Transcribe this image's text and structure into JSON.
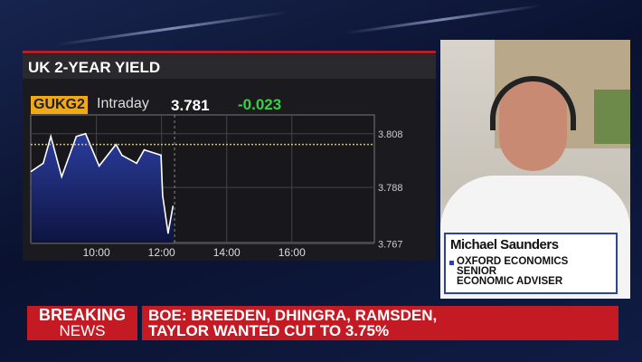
{
  "panel": {
    "title": "UK 2-YEAR YIELD",
    "ticker": "GUKG2",
    "mode": "Intraday",
    "last": "3.781",
    "change": "-0.023",
    "accent": "#f0a818",
    "change_color": "#37d23f"
  },
  "chart_data": {
    "type": "area",
    "title": "UK 2-YEAR YIELD",
    "x_ticks": [
      "10:00",
      "12:00",
      "14:00",
      "16:00"
    ],
    "y_ticks": [
      "3.808",
      "3.788",
      "3.767"
    ],
    "xlim": [
      "07:59",
      "18:32"
    ],
    "ylim": [
      3.7675,
      3.815
    ],
    "reference_line": {
      "value": 3.804,
      "style": "dotted",
      "color": "#e8c13a"
    },
    "current_time_marker": "12:24",
    "series": [
      {
        "x": [
          "08:00",
          "08:22",
          "08:36",
          "08:56",
          "09:23",
          "09:40",
          "10:05",
          "10:36",
          "10:47",
          "11:14",
          "11:28",
          "11:59",
          "12:02",
          "12:12",
          "12:21"
        ],
        "values": [
          3.794,
          3.797,
          3.807,
          3.792,
          3.807,
          3.808,
          3.796,
          3.804,
          3.8,
          3.797,
          3.802,
          3.8,
          3.785,
          3.771,
          3.781
        ],
        "fill": "#2b3d9e",
        "line": "#ffffff"
      }
    ],
    "grid": true
  },
  "guest": {
    "name": "Michael Saunders",
    "role_lines": [
      "OXFORD ECONOMICS",
      "SENIOR",
      "ECONOMIC ADVISER"
    ]
  },
  "ticker_bar": {
    "label_top": "BREAKING",
    "label_bottom": "NEWS",
    "headline_line1": "BOE: BREEDEN, DHINGRA, RAMSDEN,",
    "headline_line2": "TAYLOR WANTED CUT TO 3.75%"
  }
}
